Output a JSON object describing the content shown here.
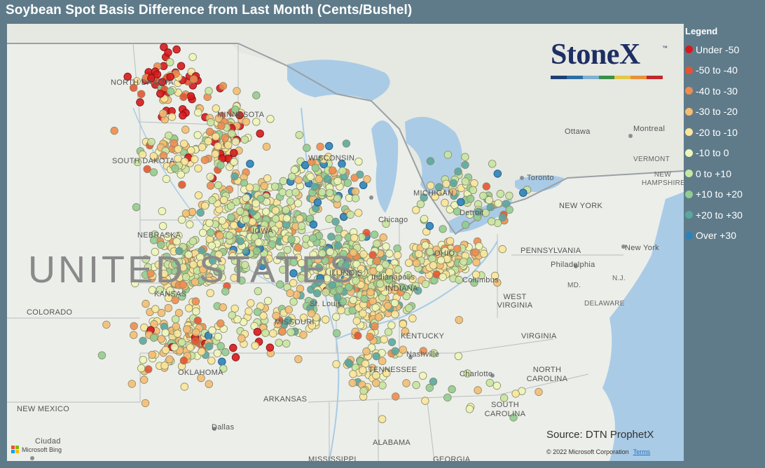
{
  "title": "Soybean Spot Basis Difference from Last Month (Cents/Bushel)",
  "legend": {
    "title": "Legend",
    "items": [
      {
        "label": "Under -50",
        "color": "#d7191c"
      },
      {
        "label": "-50 to -40",
        "color": "#e8532f"
      },
      {
        "label": "-40 to -30",
        "color": "#f08c4f"
      },
      {
        "label": "-30 to -20",
        "color": "#f6bc72"
      },
      {
        "label": "-20 to -10",
        "color": "#fbe59a"
      },
      {
        "label": "-10 to 0",
        "color": "#eef5b8"
      },
      {
        "label": "0 to +10",
        "color": "#c8e6a0"
      },
      {
        "label": "+10 to +20",
        "color": "#91cc91"
      },
      {
        "label": "+20 to +30",
        "color": "#5aa7a0"
      },
      {
        "label": "Over +30",
        "color": "#2b83ba"
      }
    ]
  },
  "map": {
    "country_label": "UNITED STATES",
    "places": [
      "NORTH DAKOTA",
      "MINNESOTA",
      "SOUTH DAKOTA",
      "WISCONSIN",
      "MICHIGAN",
      "NEBRASKA",
      "IOWA",
      "ILLINOIS",
      "INDIANA",
      "OHIO",
      "MISSOURI",
      "KANSAS",
      "COLORADO",
      "OKLAHOMA",
      "ARKANSAS",
      "TENNESSEE",
      "KENTUCKY",
      "NEW MEXICO",
      "ALABAMA",
      "MISSISSIPPI",
      "GEORGIA",
      "WEST VIRGINIA",
      "VIRGINIA",
      "NORTH CAROLINA",
      "SOUTH CAROLINA",
      "PENNSYLVANIA",
      "NEW YORK",
      "VERMONT",
      "NEW HAMPSHIRE",
      "MD.",
      "N.J.",
      "DELAWARE",
      "Ottawa",
      "Montreal",
      "Toronto",
      "Chicago",
      "Detroit",
      "Columbus",
      "Indianapolis",
      "Nashville",
      "Charlotte",
      "Dallas",
      "Philadelphia",
      "New York",
      "Ciudad",
      "St. Louis"
    ],
    "logo_text": "StoneX",
    "logo_tm": "™",
    "logo_bar_colors": [
      "#1d3f73",
      "#2f6ea3",
      "#7fb0cf",
      "#3a8f4a",
      "#e3c84a",
      "#e8923a",
      "#c1272d"
    ],
    "source": "Source: DTN ProphetX",
    "copyright": "© 2022 Microsoft Corporation",
    "terms": "Terms",
    "attribution": "Microsoft Bing",
    "bing_colors": [
      "#f25022",
      "#7fba00",
      "#00a4ef",
      "#ffb900"
    ]
  },
  "clusters": [
    {
      "name": "north-dakota-east",
      "center": [
        0.24,
        0.14
      ],
      "spread": [
        0.05,
        0.06
      ],
      "count": 70,
      "weights": [
        0.42,
        0.12,
        0.12,
        0.12,
        0.12,
        0.05,
        0.03,
        0.02,
        0,
        0
      ]
    },
    {
      "name": "minnesota",
      "center": [
        0.32,
        0.27
      ],
      "spread": [
        0.04,
        0.08
      ],
      "count": 110,
      "weights": [
        0.08,
        0.07,
        0.14,
        0.2,
        0.2,
        0.14,
        0.1,
        0.05,
        0.02,
        0
      ]
    },
    {
      "name": "south-dakota-east",
      "center": [
        0.24,
        0.3
      ],
      "spread": [
        0.04,
        0.06
      ],
      "count": 50,
      "weights": [
        0.02,
        0.03,
        0.06,
        0.15,
        0.25,
        0.22,
        0.17,
        0.1,
        0,
        0
      ]
    },
    {
      "name": "iowa",
      "center": [
        0.36,
        0.46
      ],
      "spread": [
        0.07,
        0.08
      ],
      "count": 330,
      "weights": [
        0.01,
        0.01,
        0.03,
        0.07,
        0.17,
        0.25,
        0.25,
        0.15,
        0.03,
        0.03
      ]
    },
    {
      "name": "nebraska",
      "center": [
        0.27,
        0.55
      ],
      "spread": [
        0.06,
        0.06
      ],
      "count": 170,
      "weights": [
        0.01,
        0.02,
        0.04,
        0.1,
        0.2,
        0.23,
        0.22,
        0.15,
        0.02,
        0.01
      ]
    },
    {
      "name": "kansas",
      "center": [
        0.26,
        0.72
      ],
      "spread": [
        0.06,
        0.07
      ],
      "count": 140,
      "weights": [
        0.03,
        0.03,
        0.08,
        0.24,
        0.3,
        0.12,
        0.1,
        0.06,
        0.03,
        0.01
      ]
    },
    {
      "name": "wisconsin",
      "center": [
        0.47,
        0.36
      ],
      "spread": [
        0.05,
        0.06
      ],
      "count": 100,
      "weights": [
        0,
        0.01,
        0.03,
        0.08,
        0.1,
        0.15,
        0.2,
        0.2,
        0.13,
        0.1
      ]
    },
    {
      "name": "illinois",
      "center": [
        0.5,
        0.56
      ],
      "spread": [
        0.06,
        0.08
      ],
      "count": 300,
      "weights": [
        0.01,
        0.01,
        0.02,
        0.05,
        0.12,
        0.2,
        0.24,
        0.23,
        0.08,
        0.04
      ]
    },
    {
      "name": "indiana",
      "center": [
        0.55,
        0.62
      ],
      "spread": [
        0.04,
        0.08
      ],
      "count": 150,
      "weights": [
        0,
        0.01,
        0.05,
        0.2,
        0.25,
        0.2,
        0.15,
        0.1,
        0.03,
        0.01
      ]
    },
    {
      "name": "ohio",
      "center": [
        0.65,
        0.54
      ],
      "spread": [
        0.05,
        0.05
      ],
      "count": 130,
      "weights": [
        0,
        0.01,
        0.05,
        0.2,
        0.3,
        0.2,
        0.14,
        0.08,
        0.01,
        0.01
      ]
    },
    {
      "name": "michigan",
      "center": [
        0.68,
        0.4
      ],
      "spread": [
        0.06,
        0.06
      ],
      "count": 70,
      "weights": [
        0,
        0.02,
        0.03,
        0.08,
        0.12,
        0.15,
        0.2,
        0.22,
        0.13,
        0.05
      ]
    },
    {
      "name": "missouri",
      "center": [
        0.4,
        0.68
      ],
      "spread": [
        0.05,
        0.05
      ],
      "count": 60,
      "weights": [
        0.03,
        0.02,
        0.05,
        0.2,
        0.3,
        0.18,
        0.12,
        0.07,
        0.02,
        0.01
      ]
    },
    {
      "name": "kentucky-tennessee",
      "center": [
        0.53,
        0.78
      ],
      "spread": [
        0.04,
        0.07
      ],
      "count": 50,
      "weights": [
        0.01,
        0.02,
        0.05,
        0.15,
        0.22,
        0.2,
        0.15,
        0.1,
        0.08,
        0.02
      ]
    },
    {
      "name": "southeast",
      "center": [
        0.68,
        0.82
      ],
      "spread": [
        0.1,
        0.08
      ],
      "count": 25,
      "weights": [
        0.02,
        0.02,
        0.06,
        0.12,
        0.22,
        0.2,
        0.2,
        0.1,
        0.06,
        0
      ]
    }
  ]
}
